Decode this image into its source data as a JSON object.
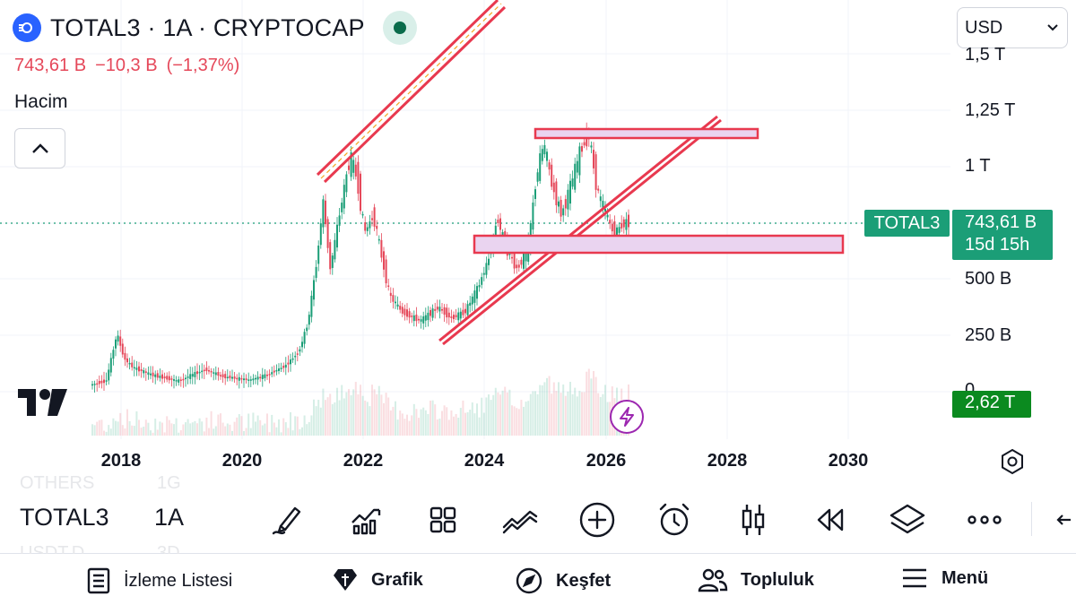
{
  "header": {
    "title": "TOTAL3 · 1A · CRYPTOCAP",
    "price": "743,61 B",
    "change": "−10,3 B",
    "change_pct": "(−1,37%)",
    "volume_label": "Hacim",
    "currency": "USD"
  },
  "colors": {
    "up": "#1b9e77",
    "down": "#e5485a",
    "drawing": "#e8394f",
    "zone_fill": "#ead4f0",
    "accent": "#2962ff"
  },
  "chart": {
    "y_ticks": [
      "1,5 T",
      "1,25 T",
      "1 T",
      "500 B",
      "250 B",
      "0"
    ],
    "x_ticks": [
      "2018",
      "2020",
      "2022",
      "2024",
      "2026",
      "2028",
      "2030"
    ],
    "symbol_tag": "TOTAL3",
    "last_price": "743,61 B",
    "countdown": "15d 15h",
    "volume_tag": "2,62 T"
  },
  "toolbar": {
    "ghost_top_symbol": "OTHERS",
    "ghost_top_interval": "1G",
    "symbol": "TOTAL3",
    "interval": "1A",
    "ghost_bottom_symbol": "USDT.D",
    "ghost_bottom_interval": "3D",
    "icons": [
      "brush-icon",
      "indicators-icon",
      "templates-icon",
      "compare-icon",
      "add-icon",
      "alert-icon",
      "candles-icon",
      "replay-icon",
      "layers-icon",
      "more-icon"
    ]
  },
  "nav": {
    "watchlist": "İzleme Listesi",
    "chart": "Grafik",
    "explore": "Keşfet",
    "community": "Topluluk",
    "menu": "Menü"
  }
}
